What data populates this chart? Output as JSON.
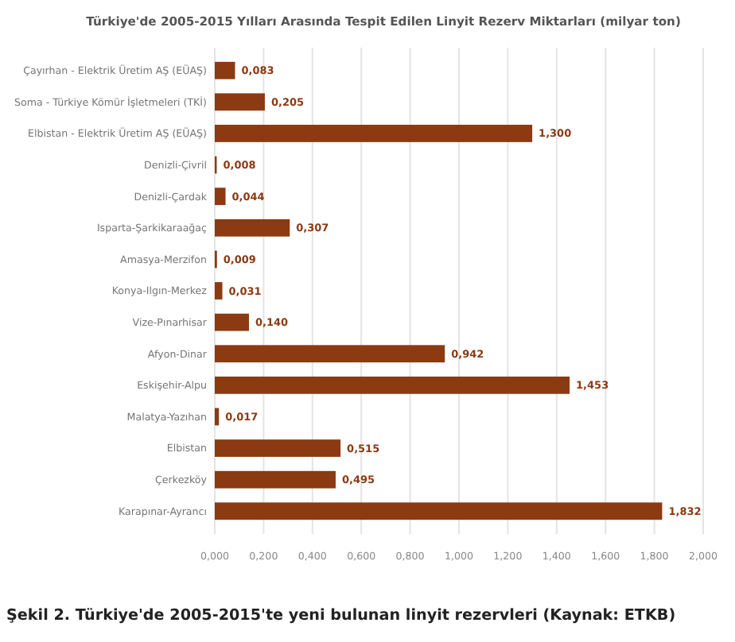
{
  "chart_data": {
    "type": "bar",
    "orientation": "horizontal",
    "title": "Türkiye'de 2005-2015 Yılları Arasında Tespit Edilen Linyit Rezerv Miktarları (milyar ton)",
    "categories": [
      "Çayırhan - Elektrik Üretim AŞ (EÜAŞ)",
      "Soma - Türkiye Kömür İşletmeleri (TKİ)",
      "Elbistan - Elektrik Üretim AŞ (EÜAŞ)",
      "Denizli-Çivril",
      "Denizli-Çardak",
      "Isparta-Şarkikaraağaç",
      "Amasya-Merzifon",
      "Konya-Ilgın-Merkez",
      "Vize-Pınarhisar",
      "Afyon-Dinar",
      "Eskişehir-Alpu",
      "Malatya-Yazıhan",
      "Elbistan",
      "Çerkezköy",
      "Karapınar-Ayrancı"
    ],
    "values": [
      0.083,
      0.205,
      1.3,
      0.008,
      0.044,
      0.307,
      0.009,
      0.031,
      0.14,
      0.942,
      1.453,
      0.017,
      0.515,
      0.495,
      1.832
    ],
    "value_labels": [
      "0,083",
      "0,205",
      "1,300",
      "0,008",
      "0,044",
      "0,307",
      "0,009",
      "0,031",
      "0,140",
      "0,942",
      "1,453",
      "0,017",
      "0,515",
      "0,495",
      "1,832"
    ],
    "color": "#8b3a12",
    "xlim": [
      0,
      2
    ],
    "xticks": [
      {
        "value": 0,
        "label": "0,000"
      },
      {
        "value": 0.2,
        "label": "0,200"
      },
      {
        "value": 0.4,
        "label": "0,400"
      },
      {
        "value": 0.6,
        "label": "0,600"
      },
      {
        "value": 0.8,
        "label": "0,800"
      },
      {
        "value": 1,
        "label": "1,000"
      },
      {
        "value": 1.2,
        "label": "1,200"
      },
      {
        "value": 1.4,
        "label": "1,400"
      },
      {
        "value": 1.6,
        "label": "1,600"
      },
      {
        "value": 1.8,
        "label": "1,800"
      },
      {
        "value": 2,
        "label": "2,000"
      }
    ],
    "grid": "x",
    "annotations": [
      "Şekil 2. Türkiye'de 2005-2015'te yeni bulunan linyit rezervleri (Kaynak: ETKB)"
    ]
  }
}
